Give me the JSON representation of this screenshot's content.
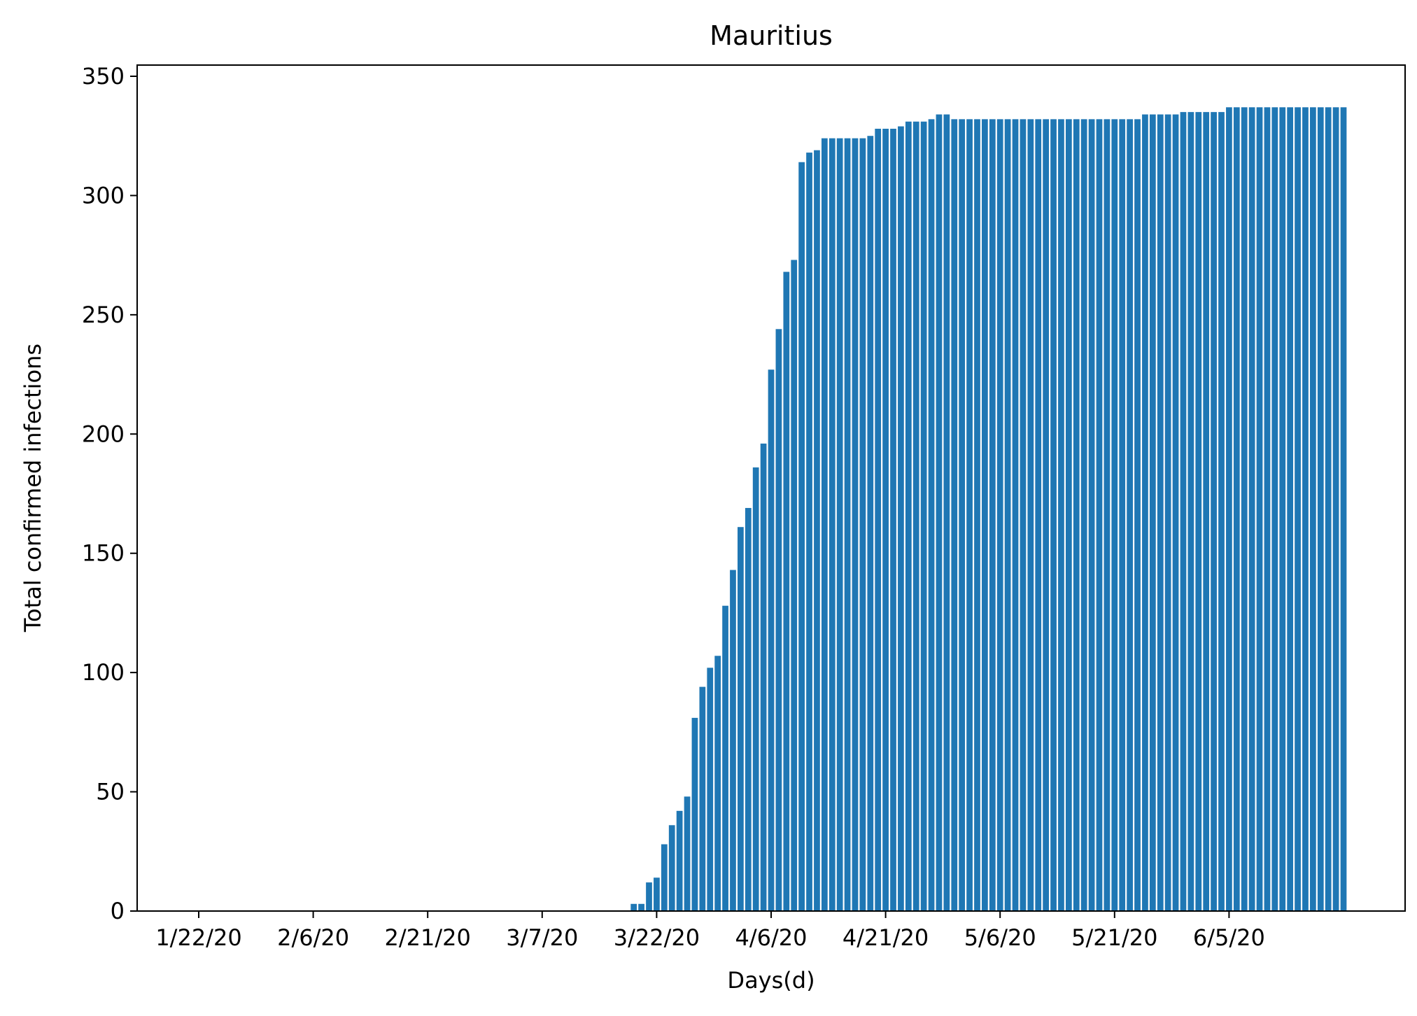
{
  "chart_data": {
    "type": "bar",
    "title": "Mauritius",
    "xlabel": "Days(d)",
    "ylabel": "Total confirmed infections",
    "ylim": [
      0,
      350
    ],
    "yticks": [
      0,
      50,
      100,
      150,
      200,
      250,
      300,
      350
    ],
    "xticks": [
      {
        "index": 0,
        "label": "1/22/20"
      },
      {
        "index": 15,
        "label": "2/6/20"
      },
      {
        "index": 30,
        "label": "2/21/20"
      },
      {
        "index": 45,
        "label": "3/7/20"
      },
      {
        "index": 60,
        "label": "3/22/20"
      },
      {
        "index": 75,
        "label": "4/6/20"
      },
      {
        "index": 90,
        "label": "4/21/20"
      },
      {
        "index": 105,
        "label": "5/6/20"
      },
      {
        "index": 120,
        "label": "5/21/20"
      },
      {
        "index": 135,
        "label": "6/5/20"
      }
    ],
    "color": "#1f77b4",
    "grid": false,
    "legend": "none",
    "values": [
      0,
      0,
      0,
      0,
      0,
      0,
      0,
      0,
      0,
      0,
      0,
      0,
      0,
      0,
      0,
      0,
      0,
      0,
      0,
      0,
      0,
      0,
      0,
      0,
      0,
      0,
      0,
      0,
      0,
      0,
      0,
      0,
      0,
      0,
      0,
      0,
      0,
      0,
      0,
      0,
      0,
      0,
      0,
      0,
      0,
      0,
      0,
      0,
      0,
      0,
      0,
      0,
      0,
      0,
      0,
      0,
      0,
      3,
      3,
      12,
      14,
      28,
      36,
      42,
      48,
      81,
      94,
      102,
      107,
      128,
      143,
      161,
      169,
      186,
      196,
      227,
      244,
      268,
      273,
      314,
      318,
      319,
      324,
      324,
      324,
      324,
      324,
      324,
      325,
      328,
      328,
      328,
      329,
      331,
      331,
      331,
      332,
      334,
      334,
      332,
      332,
      332,
      332,
      332,
      332,
      332,
      332,
      332,
      332,
      332,
      332,
      332,
      332,
      332,
      332,
      332,
      332,
      332,
      332,
      332,
      332,
      332,
      332,
      332,
      334,
      334,
      334,
      334,
      334,
      335,
      335,
      335,
      335,
      335,
      335,
      337,
      337,
      337,
      337,
      337,
      337,
      337,
      337,
      337,
      337,
      337,
      337,
      337,
      337,
      337,
      337
    ]
  }
}
